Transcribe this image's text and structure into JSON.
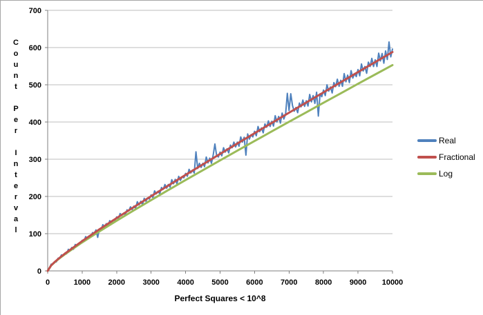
{
  "chart_data": {
    "type": "line",
    "title": "",
    "xlabel": "Perfect Squares < 10^8",
    "ylabel": "Count Per Interval",
    "xlim": [
      0,
      10000
    ],
    "ylim": [
      0,
      700
    ],
    "x_ticks": [
      0,
      1000,
      2000,
      3000,
      4000,
      5000,
      6000,
      7000,
      8000,
      9000,
      10000
    ],
    "y_ticks": [
      0,
      100,
      200,
      300,
      400,
      500,
      600,
      700
    ],
    "grid": "horizontal",
    "legend_position": "right",
    "colors": {
      "gridline": "#bebebe",
      "axis": "#7f7f7f",
      "border": "#a6a6a6",
      "text": "#000000"
    },
    "series": [
      {
        "name": "Real",
        "color": "#4f81bd",
        "stroke_width": 2,
        "x_start": 0,
        "x_step": 50,
        "y": [
          1,
          7,
          18,
          18,
          25,
          24,
          34,
          35,
          43,
          40,
          48,
          46,
          58,
          55,
          63,
          58,
          71,
          67,
          74,
          74,
          82,
          79,
          92,
          88,
          94,
          91,
          103,
          101,
          110,
          90,
          113,
          109,
          124,
          118,
          127,
          120,
          135,
          129,
          137,
          135,
          145,
          140,
          154,
          149,
          155,
          150,
          164,
          161,
          172,
          165,
          174,
          168,
          186,
          177,
          187,
          178,
          195,
          187,
          196,
          193,
          204,
          197,
          215,
          207,
          214,
          207,
          224,
          219,
          232,
          222,
          232,
          225,
          245,
          234,
          246,
          234,
          254,
          243,
          253,
          250,
          262,
          254,
          273,
          263,
          271,
          263,
          320,
          275,
          289,
          278,
          289,
          280,
          306,
          290,
          303,
          289,
          311,
          341,
          310,
          306,
          319,
          309,
          331,
          319,
          328,
          317,
          338,
          331,
          346,
          333,
          346,
          335,
          360,
          346,
          359,
          311,
          368,
          354,
          366,
          360,
          375,
          363,
          388,
          374,
          384,
          371,
          395,
          386,
          403,
          388,
          402,
          389,
          417,
          400,
          415,
          397,
          424,
          408,
          421,
          477,
          431,
          476,
          444,
          429,
          439,
          425,
          451,
          441,
          459,
          442,
          457,
          443,
          474,
          454,
          471,
          450,
          480,
          416,
          476,
          468,
          486,
          471,
          500,
          483,
          494,
          478,
          506,
          495,
          515,
          496,
          512,
          496,
          530,
          508,
          526,
          506,
          538,
          518,
          530,
          522,
          541,
          524,
          556,
          537,
          549,
          531,
          561,
          549,
          571,
          549,
          567,
          549,
          585,
          564,
          584,
          558,
          591,
          568,
          615,
          575,
          596
        ]
      },
      {
        "name": "Fractional",
        "color": "#c0504d",
        "stroke_width": 3,
        "x": [
          0,
          100,
          200,
          300,
          400,
          500,
          1000,
          1500,
          2000,
          2500,
          3000,
          3500,
          4000,
          4500,
          5000,
          5500,
          6000,
          6500,
          7000,
          7500,
          8000,
          8500,
          9000,
          9500,
          10000
        ],
        "y": [
          0,
          14.7,
          23.7,
          31.7,
          39.2,
          46.4,
          80.0,
          111.5,
          141.8,
          171.5,
          200.7,
          229.5,
          258.0,
          286.2,
          314.3,
          342.2,
          369.9,
          397.5,
          425.0,
          452.4,
          479.7,
          506.9,
          534.0,
          561.0,
          588.0
        ]
      },
      {
        "name": "Log",
        "color": "#9bbb59",
        "stroke_width": 3,
        "x": [
          0,
          100,
          200,
          300,
          400,
          500,
          1000,
          1500,
          2000,
          2500,
          3000,
          3500,
          4000,
          4500,
          5000,
          5500,
          6000,
          6500,
          7000,
          7500,
          8000,
          8500,
          9000,
          9500,
          10000
        ],
        "y": [
          0,
          14.4,
          23.0,
          30.6,
          37.8,
          44.7,
          76.5,
          106.2,
          134.8,
          162.8,
          190.2,
          217.2,
          244.0,
          270.5,
          296.8,
          322.9,
          348.9,
          374.8,
          400.5,
          426.1,
          451.7,
          477.1,
          502.5,
          527.8,
          553.0
        ]
      }
    ]
  }
}
